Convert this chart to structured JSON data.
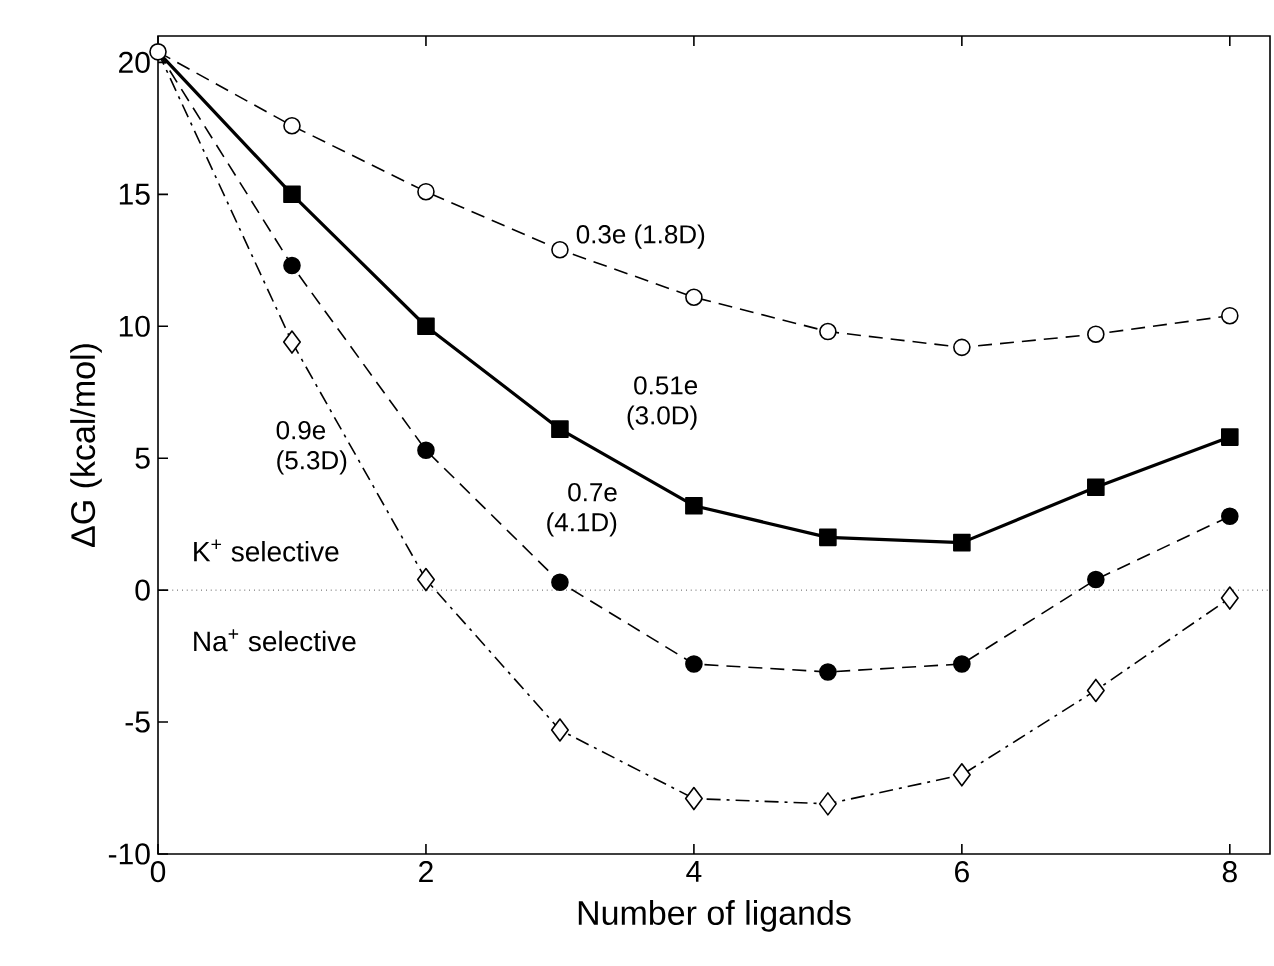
{
  "chart_data": {
    "type": "line",
    "xlabel": "Number of ligands",
    "ylabel": "ΔG (kcal/mol)",
    "x": [
      0,
      1,
      2,
      3,
      4,
      5,
      6,
      7,
      8
    ],
    "series": [
      {
        "name": "0.3e (1.8D)",
        "color": "#000000",
        "marker": "circle",
        "line_style": "dashed",
        "values": [
          20.4,
          17.6,
          15.1,
          12.9,
          11.1,
          9.8,
          9.2,
          9.7,
          10.4
        ]
      },
      {
        "name": "0.51e (3.0D)",
        "color": "#000000",
        "marker": "square",
        "line_style": "solid",
        "values": [
          20.4,
          15.0,
          10.0,
          6.1,
          3.2,
          2.0,
          1.8,
          3.9,
          5.8
        ]
      },
      {
        "name": "0.7e (4.1D)",
        "color": "#000000",
        "marker": "circle",
        "line_style": "dashed",
        "values": [
          20.4,
          12.3,
          5.3,
          0.3,
          -2.8,
          -3.1,
          -2.8,
          0.4,
          2.8
        ]
      },
      {
        "name": "0.9e (5.3D)",
        "color": "#000000",
        "marker": "diamond",
        "line_style": "dashdot",
        "values": [
          20.4,
          9.4,
          0.4,
          -5.3,
          -7.9,
          -8.1,
          -7.0,
          -3.8,
          -0.3
        ]
      }
    ],
    "xlim": [
      0,
      8.3
    ],
    "ylim": [
      -10,
      21
    ],
    "xticks": [
      0,
      2,
      4,
      6,
      8
    ],
    "yticks": [
      -10,
      -5,
      0,
      5,
      10,
      15,
      20
    ],
    "ref_lines": [
      {
        "axis": "y",
        "value": 0,
        "line_style": "dotted",
        "color": "#000000"
      }
    ],
    "annotations": [
      "K$^{+}$ selective",
      "Na$^{+}$ selective"
    ],
    "grid": false
  }
}
